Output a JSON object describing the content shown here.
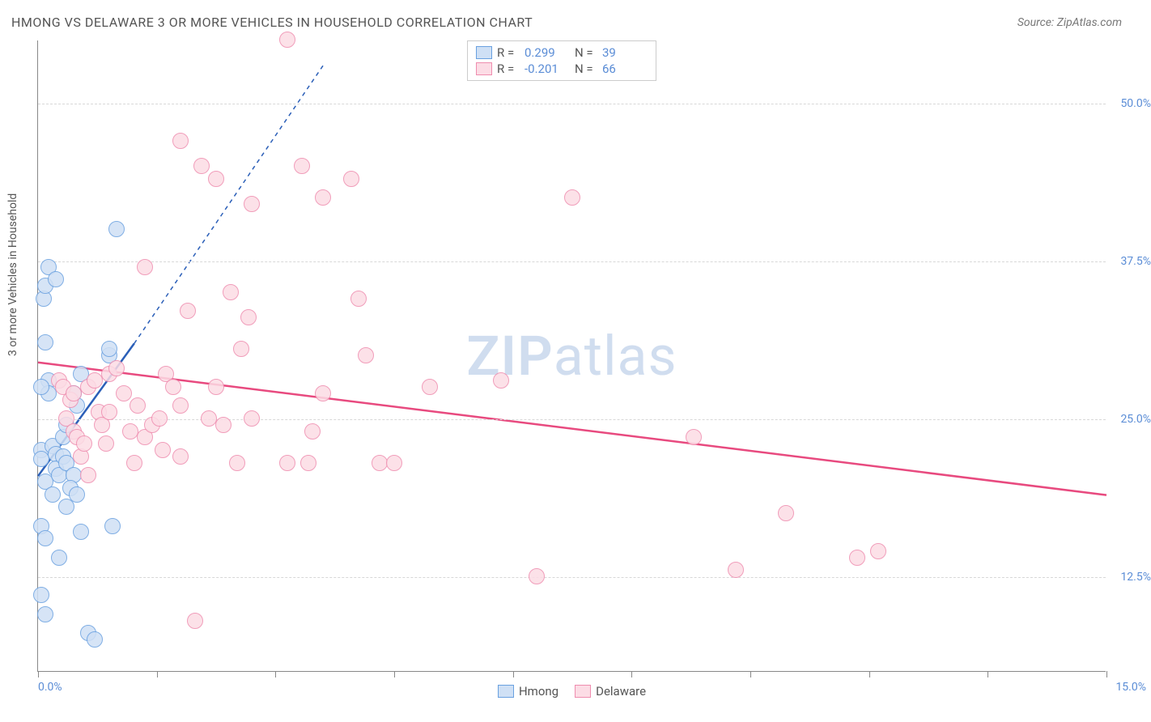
{
  "title": "HMONG VS DELAWARE 3 OR MORE VEHICLES IN HOUSEHOLD CORRELATION CHART",
  "source": "Source: ZipAtlas.com",
  "y_axis_label": "3 or more Vehicles in Household",
  "watermark_bold": "ZIP",
  "watermark_light": "atlas",
  "chart": {
    "type": "scatter",
    "xlim": [
      0,
      15
    ],
    "ylim": [
      5,
      55
    ],
    "y_ticks": [
      12.5,
      25.0,
      37.5,
      50.0
    ],
    "y_tick_labels": [
      "12.5%",
      "25.0%",
      "37.5%",
      "50.0%"
    ],
    "x_ticks": [
      0,
      1.67,
      3.33,
      5.0,
      6.67,
      8.33,
      10.0,
      11.67,
      13.33,
      15.0
    ],
    "x_tick_labels": {
      "start": "0.0%",
      "end": "15.0%"
    },
    "grid_color": "#d8d8d8",
    "axis_color": "#888888",
    "background": "#ffffff",
    "point_radius": 10,
    "series": [
      {
        "name": "Hmong",
        "fill": "#cfe0f5",
        "stroke": "#6aa1e0",
        "trend": {
          "x1": 0,
          "y1": 20.5,
          "x2": 1.35,
          "y2": 31,
          "color": "#2b5fb8",
          "width": 2.5,
          "dash": "none",
          "ext_x1": 1.35,
          "ext_y1": 31,
          "ext_x2": 4.0,
          "ext_y2": 53,
          "ext_dash": "5,5"
        },
        "points": [
          [
            0.05,
            22.5
          ],
          [
            0.05,
            21.8
          ],
          [
            0.05,
            11
          ],
          [
            0.05,
            16.5
          ],
          [
            0.1,
            20
          ],
          [
            0.08,
            34.5
          ],
          [
            0.1,
            35.5
          ],
          [
            0.15,
            28
          ],
          [
            0.15,
            27
          ],
          [
            0.1,
            31
          ],
          [
            0.2,
            22.8
          ],
          [
            0.25,
            22.2
          ],
          [
            0.25,
            21
          ],
          [
            0.1,
            9.5
          ],
          [
            0.3,
            20.5
          ],
          [
            0.2,
            19
          ],
          [
            0.35,
            22
          ],
          [
            0.35,
            23.5
          ],
          [
            0.4,
            24.5
          ],
          [
            0.4,
            21.5
          ],
          [
            0.5,
            27
          ],
          [
            0.55,
            26
          ],
          [
            0.6,
            28.5
          ],
          [
            0.5,
            20.5
          ],
          [
            0.3,
            14
          ],
          [
            0.1,
            15.5
          ],
          [
            0.4,
            18
          ],
          [
            0.45,
            19.5
          ],
          [
            0.55,
            19
          ],
          [
            0.6,
            16
          ],
          [
            0.7,
            8
          ],
          [
            0.8,
            7.5
          ],
          [
            1.0,
            30
          ],
          [
            1.05,
            16.5
          ],
          [
            1.0,
            30.5
          ],
          [
            1.1,
            40
          ],
          [
            0.15,
            37
          ],
          [
            0.25,
            36
          ],
          [
            0.05,
            27.5
          ]
        ]
      },
      {
        "name": "Delaware",
        "fill": "#fcdce5",
        "stroke": "#ef8daf",
        "trend": {
          "x1": 0,
          "y1": 29.5,
          "x2": 15,
          "y2": 19,
          "color": "#e84a7f",
          "width": 2.5,
          "dash": "none"
        },
        "points": [
          [
            0.3,
            28
          ],
          [
            0.35,
            27.5
          ],
          [
            0.4,
            25
          ],
          [
            0.45,
            26.5
          ],
          [
            0.5,
            27
          ],
          [
            0.5,
            24
          ],
          [
            0.55,
            23.5
          ],
          [
            0.6,
            22
          ],
          [
            0.65,
            23
          ],
          [
            0.7,
            20.5
          ],
          [
            0.7,
            27.5
          ],
          [
            0.8,
            28
          ],
          [
            0.85,
            25.5
          ],
          [
            0.9,
            24.5
          ],
          [
            0.95,
            23
          ],
          [
            1.0,
            28.5
          ],
          [
            1.0,
            25.5
          ],
          [
            1.1,
            29
          ],
          [
            1.2,
            27
          ],
          [
            1.3,
            24
          ],
          [
            1.35,
            21.5
          ],
          [
            1.4,
            26
          ],
          [
            1.5,
            23.5
          ],
          [
            1.5,
            37
          ],
          [
            1.6,
            24.5
          ],
          [
            1.7,
            25
          ],
          [
            1.8,
            28.5
          ],
          [
            1.75,
            22.5
          ],
          [
            1.9,
            27.5
          ],
          [
            2.0,
            26
          ],
          [
            2.0,
            22
          ],
          [
            2.0,
            47
          ],
          [
            2.1,
            33.5
          ],
          [
            2.3,
            45
          ],
          [
            2.2,
            9
          ],
          [
            2.4,
            25
          ],
          [
            2.5,
            44
          ],
          [
            2.5,
            27.5
          ],
          [
            2.6,
            24.5
          ],
          [
            2.7,
            35
          ],
          [
            2.8,
            21.5
          ],
          [
            2.85,
            30.5
          ],
          [
            2.95,
            33
          ],
          [
            3.0,
            42
          ],
          [
            3.0,
            25
          ],
          [
            3.5,
            21.5
          ],
          [
            3.5,
            55
          ],
          [
            3.7,
            45
          ],
          [
            3.8,
            21.5
          ],
          [
            3.85,
            24
          ],
          [
            4.0,
            27
          ],
          [
            4.0,
            42.5
          ],
          [
            4.4,
            44
          ],
          [
            4.5,
            34.5
          ],
          [
            4.6,
            30
          ],
          [
            4.8,
            21.5
          ],
          [
            5.0,
            21.5
          ],
          [
            5.5,
            27.5
          ],
          [
            7.0,
            12.5
          ],
          [
            7.5,
            42.5
          ],
          [
            6.5,
            28
          ],
          [
            9.2,
            23.5
          ],
          [
            9.8,
            13
          ],
          [
            10.5,
            17.5
          ],
          [
            11.5,
            14
          ],
          [
            11.8,
            14.5
          ]
        ]
      }
    ]
  },
  "stats_legend": [
    {
      "swatch_fill": "#cfe0f5",
      "swatch_stroke": "#6aa1e0",
      "r_label": "R =",
      "r_val": "0.299",
      "n_label": "N =",
      "n_val": "39"
    },
    {
      "swatch_fill": "#fcdce5",
      "swatch_stroke": "#ef8daf",
      "r_label": "R =",
      "r_val": "-0.201",
      "n_label": "N =",
      "n_val": "66"
    }
  ],
  "bottom_legend": [
    {
      "swatch_fill": "#cfe0f5",
      "swatch_stroke": "#6aa1e0",
      "label": "Hmong"
    },
    {
      "swatch_fill": "#fcdce5",
      "swatch_stroke": "#ef8daf",
      "label": "Delaware"
    }
  ]
}
